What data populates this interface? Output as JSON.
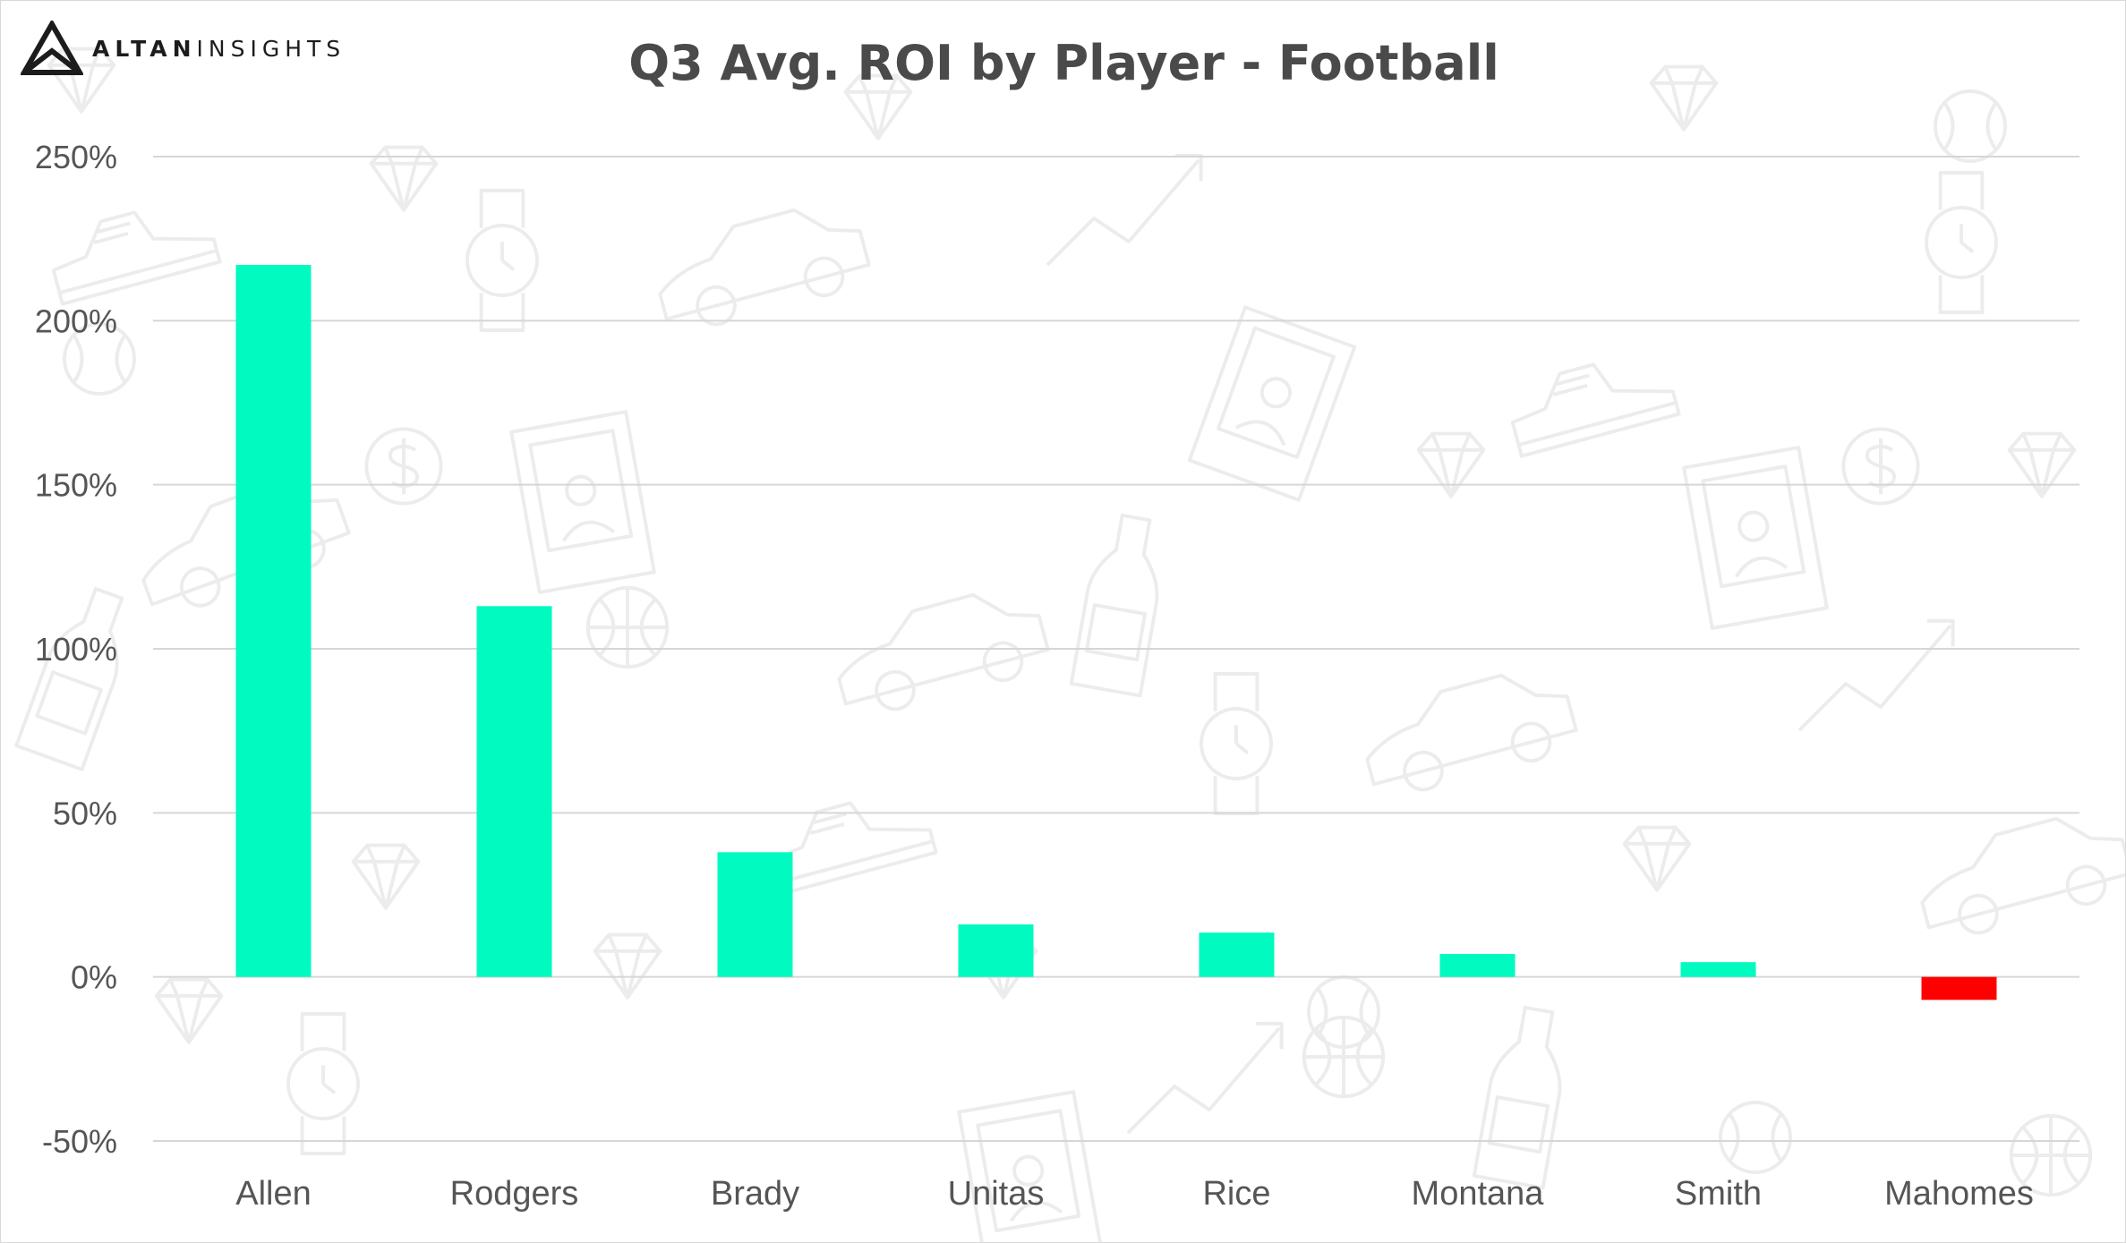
{
  "brand": {
    "name_bold": "ALTAN",
    "name_light": "INSIGHTS"
  },
  "colors": {
    "positive": "#00fac0",
    "negative": "#ff0000",
    "grid": "#d6d6d6",
    "title": "#4a4a4a",
    "pattern": "#ececec"
  },
  "background": {
    "pattern_icons": [
      "diamond-icon",
      "baseball-icon",
      "basketball-icon",
      "watch-icon",
      "car-icon",
      "sneaker-icon",
      "dollar-coin-icon",
      "bottle-icon",
      "trading-card-icon",
      "trend-arrow-icon"
    ]
  },
  "chart_data": {
    "type": "bar",
    "title": "Q3 Avg. ROI by Player - Football",
    "xlabel": "",
    "ylabel": "",
    "categories": [
      "Allen",
      "Rodgers",
      "Brady",
      "Unitas",
      "Rice",
      "Montana",
      "Smith",
      "Mahomes"
    ],
    "values": [
      217,
      113,
      38,
      16,
      13.5,
      7,
      4.5,
      -7
    ],
    "ylim": [
      -50,
      250
    ],
    "yticks": [
      -50,
      0,
      50,
      100,
      150,
      200,
      250
    ],
    "ytick_labels": [
      "-50%",
      "0%",
      "50%",
      "100%",
      "150%",
      "200%",
      "250%"
    ],
    "unit": "%",
    "grid": true,
    "legend": "none"
  }
}
